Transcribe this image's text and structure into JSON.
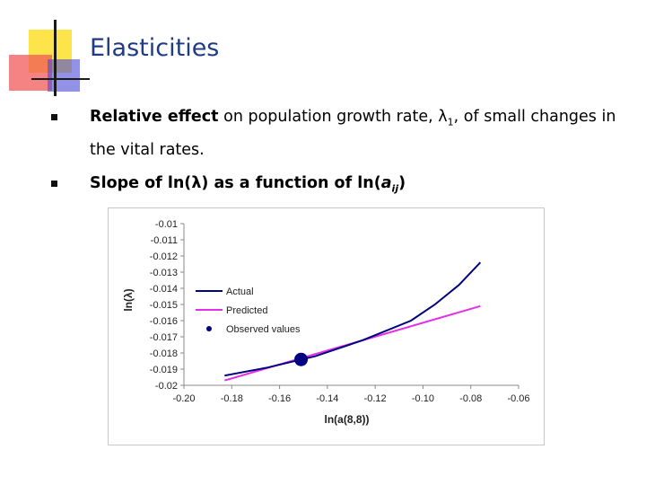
{
  "slide": {
    "title": "Elasticities",
    "bullets": [
      {
        "bold": "Relative effect",
        "text_a": " on population growth rate, ",
        "lambda": "λ",
        "sub": "1",
        "text_b": ", of small changes in the vital rates."
      },
      {
        "text_a": "Slope of ln(",
        "lambda": "λ",
        "text_b": ") as a function of ln(",
        "a": "a",
        "sub": "ij",
        "text_c": ")"
      }
    ]
  },
  "colors": {
    "title": "#1f3a86",
    "actual": "#000080",
    "predicted": "#e62ee6",
    "observed": "#000080",
    "deco_yellow": "#fce44a",
    "deco_pink": "#f25a5a",
    "deco_blue": "#4a4ad8"
  },
  "chart_data": {
    "type": "line",
    "xlabel": "ln(a(8,8))",
    "ylabel": "ln(λ)",
    "xlim": [
      -0.2,
      -0.06
    ],
    "ylim": [
      -0.02,
      -0.01
    ],
    "xticks": [
      "-0.20",
      "-0.18",
      "-0.16",
      "-0.14",
      "-0.12",
      "-0.10",
      "-0.08",
      "-0.06"
    ],
    "yticks": [
      "-0.01",
      "-0.011",
      "-0.012",
      "-0.013",
      "-0.014",
      "-0.015",
      "-0.016",
      "-0.017",
      "-0.018",
      "-0.019",
      "-0.02"
    ],
    "legend_position": "left",
    "series": [
      {
        "name": "Actual",
        "x": [
          -0.183,
          -0.165,
          -0.145,
          -0.125,
          -0.105,
          -0.095,
          -0.085,
          -0.076
        ],
        "y": [
          -0.0194,
          -0.0189,
          -0.0182,
          -0.0172,
          -0.016,
          -0.015,
          -0.0138,
          -0.0124
        ]
      },
      {
        "name": "Predicted",
        "x": [
          -0.183,
          -0.076
        ],
        "y": [
          -0.0197,
          -0.0151
        ]
      },
      {
        "name": "Observed values",
        "x": [
          -0.151
        ],
        "y": [
          -0.0184
        ]
      }
    ]
  }
}
